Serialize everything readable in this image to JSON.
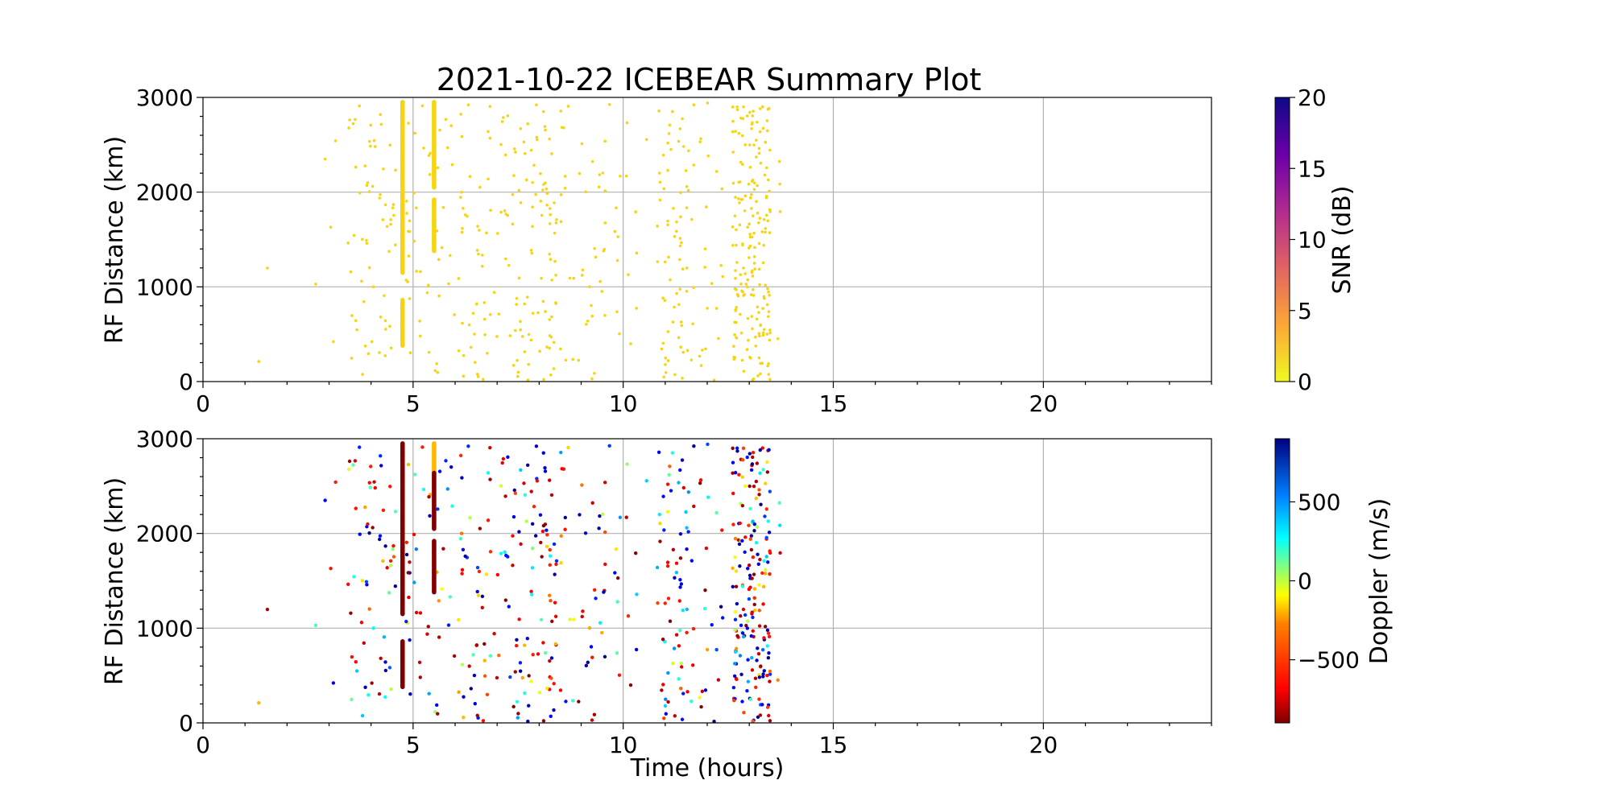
{
  "chart_data": [
    {
      "type": "scatter",
      "panel": "snr",
      "title": "2021-10-22 ICEBEAR Summary Plot",
      "xlabel": "",
      "ylabel": "RF Distance (km)",
      "xlim": [
        0,
        24
      ],
      "ylim": [
        0,
        3000
      ],
      "xticks": [
        0,
        5,
        10,
        15,
        20
      ],
      "yticks": [
        0,
        1000,
        2000,
        3000
      ],
      "grid": true,
      "colorbar": {
        "label": "SNR (dB)",
        "min": 0,
        "max": 20,
        "ticks": [
          0,
          5,
          10,
          15,
          20
        ],
        "colormap": "plasma_r"
      },
      "point_color_value": 0,
      "streaks": [
        {
          "x": 4.75,
          "y_start": 1150,
          "y_end": 2950,
          "value": 0
        },
        {
          "x": 4.75,
          "y_start": 380,
          "y_end": 860,
          "value": 0
        },
        {
          "x": 5.5,
          "y_start": 2050,
          "y_end": 2950,
          "value": 0
        },
        {
          "x": 5.5,
          "y_start": 1380,
          "y_end": 1920,
          "value": 0
        }
      ],
      "clusters": [
        {
          "x_min": 1.3,
          "x_max": 1.7,
          "count": 2
        },
        {
          "x_min": 2.5,
          "x_max": 3.2,
          "count": 5
        },
        {
          "x_min": 3.4,
          "x_max": 4.6,
          "count": 60
        },
        {
          "x_min": 4.8,
          "x_max": 6.2,
          "count": 55
        },
        {
          "x_min": 6.2,
          "x_max": 7.5,
          "count": 60
        },
        {
          "x_min": 7.5,
          "x_max": 8.6,
          "count": 80
        },
        {
          "x_min": 8.6,
          "x_max": 9.7,
          "count": 35
        },
        {
          "x_min": 9.8,
          "x_max": 10.6,
          "count": 15
        },
        {
          "x_min": 10.8,
          "x_max": 11.7,
          "count": 70
        },
        {
          "x_min": 11.8,
          "x_max": 12.4,
          "count": 20
        },
        {
          "x_min": 12.6,
          "x_max": 13.5,
          "count": 190
        },
        {
          "x_min": 13.5,
          "x_max": 13.8,
          "count": 4
        }
      ]
    },
    {
      "type": "scatter",
      "panel": "doppler",
      "xlabel": "Time (hours)",
      "ylabel": "RF Distance (km)",
      "xlim": [
        0,
        24
      ],
      "ylim": [
        0,
        3000
      ],
      "xticks": [
        0,
        5,
        10,
        15,
        20
      ],
      "yticks": [
        0,
        1000,
        2000,
        3000
      ],
      "grid": true,
      "colorbar": {
        "label": "Doppler (m/s)",
        "min": -900,
        "max": 900,
        "ticks": [
          -500,
          0,
          500
        ],
        "tick_labels": [
          "−500",
          "0",
          "500"
        ],
        "colormap": "jet_r"
      },
      "streaks": [
        {
          "x": 4.75,
          "y_start": 1150,
          "y_end": 2950,
          "value": -900
        },
        {
          "x": 4.75,
          "y_start": 380,
          "y_end": 860,
          "value": -900
        },
        {
          "x": 5.5,
          "y_start": 2650,
          "y_end": 2950,
          "value": -350
        },
        {
          "x": 5.5,
          "y_start": 2050,
          "y_end": 2640,
          "value": -900
        },
        {
          "x": 5.5,
          "y_start": 1380,
          "y_end": 1920,
          "value": -900
        }
      ],
      "clusters_note": "same events as upper panel, colored by Doppler"
    }
  ]
}
